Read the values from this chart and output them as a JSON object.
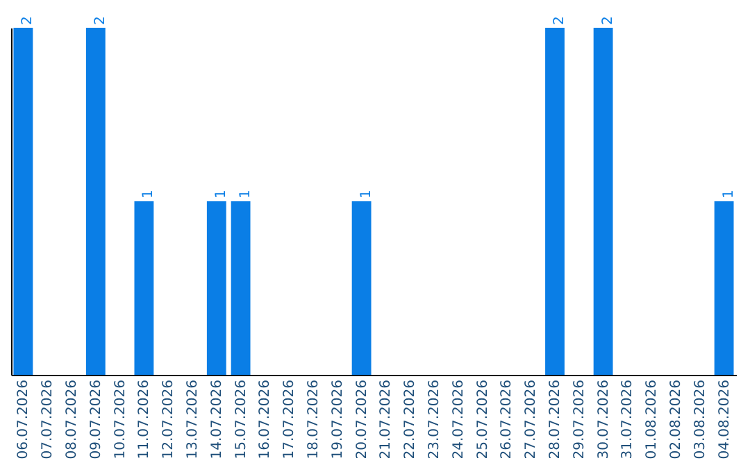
{
  "chart_data": {
    "type": "bar",
    "categories": [
      "06.07.2026",
      "07.07.2026",
      "08.07.2026",
      "09.07.2026",
      "10.07.2026",
      "11.07.2026",
      "12.07.2026",
      "13.07.2026",
      "14.07.2026",
      "15.07.2026",
      "16.07.2026",
      "17.07.2026",
      "18.07.2026",
      "19.07.2026",
      "20.07.2026",
      "21.07.2026",
      "22.07.2026",
      "23.07.2026",
      "24.07.2026",
      "25.07.2026",
      "26.07.2026",
      "27.07.2026",
      "28.07.2026",
      "29.07.2026",
      "30.07.2026",
      "31.07.2026",
      "01.08.2026",
      "02.08.2026",
      "03.08.2026",
      "04.08.2026"
    ],
    "values": [
      2,
      0,
      0,
      2,
      0,
      1,
      0,
      0,
      1,
      1,
      0,
      0,
      0,
      0,
      1,
      0,
      0,
      0,
      0,
      0,
      0,
      0,
      2,
      0,
      2,
      0,
      0,
      0,
      0,
      1
    ],
    "value_labels": [
      "2",
      null,
      null,
      "2",
      null,
      "1",
      null,
      null,
      "1",
      "1",
      null,
      null,
      null,
      null,
      "1",
      null,
      null,
      null,
      null,
      null,
      null,
      null,
      "2",
      null,
      "2",
      null,
      null,
      null,
      null,
      "1"
    ],
    "color": "#0a7ee6"
  }
}
